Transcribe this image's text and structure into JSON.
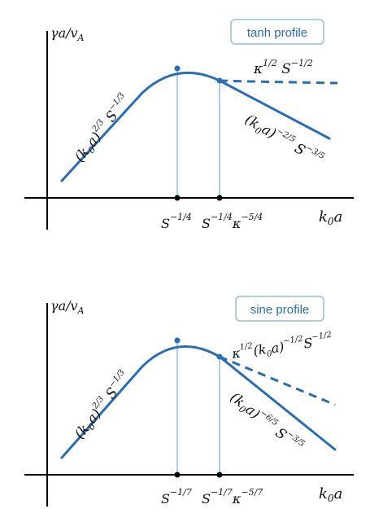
{
  "panels": [
    {
      "profile_label": "tanh profile",
      "y_axis_label": "γa/v_A",
      "x_axis_label": "k_0a",
      "left_branch_label": "(k₀a)^(2/3) S^(-1/3)",
      "right_branch_label": "(k₀a)^(-2/5) S^(-3/5)",
      "dashed_label": "κ^(1/2) S^(-1/2)",
      "tick_1": "S^(-1/4)",
      "tick_2": "S^(-1/4) κ^(-5/4)"
    },
    {
      "profile_label": "sine profile",
      "y_axis_label": "γa/v_A",
      "x_axis_label": "k_0a",
      "left_branch_label": "(k₀a)^(2/3) S^(-1/3)",
      "right_branch_label": "(k₀a)^(-6/5) S^(-3/5)",
      "dashed_label": "κ^(1/2) (k₀a)^(-1/2) S^(-1/2)",
      "tick_1": "S^(-1/7)",
      "tick_2": "S^(-1/7) κ^(-5/7)"
    }
  ],
  "colors": {
    "curve": "#2a6db2",
    "guide": "#5a9fd4",
    "axis": "#000000"
  }
}
